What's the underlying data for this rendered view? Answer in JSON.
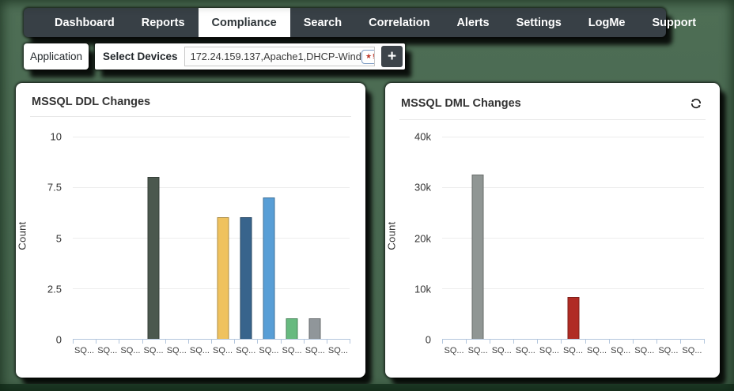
{
  "nav": {
    "items": [
      {
        "label": "Dashboard",
        "active": false
      },
      {
        "label": "Reports",
        "active": false
      },
      {
        "label": "Compliance",
        "active": true
      },
      {
        "label": "Search",
        "active": false
      },
      {
        "label": "Correlation",
        "active": false
      },
      {
        "label": "Alerts",
        "active": false
      },
      {
        "label": "Settings",
        "active": false
      },
      {
        "label": "LogMe",
        "active": false
      },
      {
        "label": "Support",
        "active": false
      }
    ]
  },
  "filter_bar": {
    "application_tab_label": "Application",
    "select_devices_label": "Select Devices",
    "devices_value": "172.24.159.137,Apache1,DHCP-Wind",
    "favorites_icon": "badge-star-icon",
    "add_button_label": "+"
  },
  "colors": {
    "nav_bg": "#384046",
    "active_tab_bg": "#ffffff",
    "backdrop_green": "#486850",
    "axis_line": "#b3c6dd"
  },
  "chart_data": [
    {
      "type": "bar",
      "title": "MSSQL DDL Changes",
      "ylabel": "Count",
      "xlabel": "",
      "categories": [
        "SQ...",
        "SQ...",
        "SQ...",
        "SQ...",
        "SQ...",
        "SQ...",
        "SQ...",
        "SQ...",
        "SQ...",
        "SQ...",
        "SQ...",
        "SQ..."
      ],
      "values": [
        0,
        0,
        0,
        8,
        0,
        0,
        6,
        6,
        7,
        1,
        1,
        0
      ],
      "bar_colors": [
        null,
        null,
        null,
        "#4b584e",
        null,
        null,
        "#efc25e",
        "#38648c",
        "#589ed6",
        "#67ba7f",
        "#90969a",
        null
      ],
      "ylim": [
        0,
        10
      ],
      "yticks": [
        0,
        2.5,
        5,
        7.5,
        10
      ],
      "ytick_labels": [
        "0",
        "2.5",
        "5",
        "7.5",
        "10"
      ],
      "grid": true,
      "legend": false,
      "has_refresh": false
    },
    {
      "type": "bar",
      "title": "MSSQL DML Changes",
      "ylabel": "Count",
      "xlabel": "",
      "categories": [
        "SQ...",
        "SQ...",
        "SQ...",
        "SQ...",
        "SQ...",
        "SQ...",
        "SQ...",
        "SQ...",
        "SQ...",
        "SQ...",
        "SQ..."
      ],
      "values": [
        0,
        32500,
        0,
        0,
        0,
        8300,
        0,
        0,
        0,
        0,
        0
      ],
      "bar_colors": [
        null,
        "#909694",
        null,
        null,
        null,
        "#b02b24",
        null,
        null,
        null,
        null,
        null
      ],
      "ylim": [
        0,
        40000
      ],
      "yticks": [
        0,
        10000,
        20000,
        30000,
        40000
      ],
      "ytick_labels": [
        "0",
        "10k",
        "20k",
        "30k",
        "40k"
      ],
      "grid": true,
      "legend": false,
      "has_refresh": true
    }
  ]
}
